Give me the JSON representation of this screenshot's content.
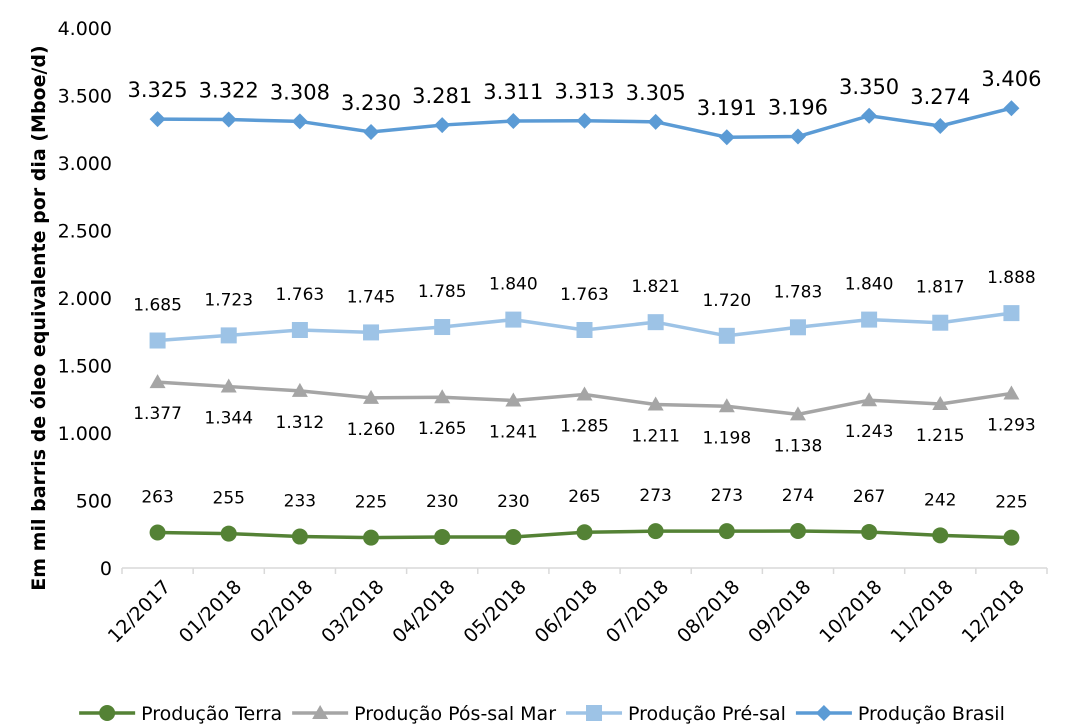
{
  "chart_data": {
    "type": "line",
    "title": "",
    "xlabel": "",
    "ylabel": "Em mil barris de óleo equivalente por dia (Mboe/d)",
    "ylim": [
      0,
      4000
    ],
    "yticks": [
      {
        "value": 0,
        "label": "0"
      },
      {
        "value": 500,
        "label": "500"
      },
      {
        "value": 1000,
        "label": "1.000"
      },
      {
        "value": 1500,
        "label": "1.500"
      },
      {
        "value": 2000,
        "label": "2.000"
      },
      {
        "value": 2500,
        "label": "2.500"
      },
      {
        "value": 3000,
        "label": "3.000"
      },
      {
        "value": 3500,
        "label": "3.500"
      },
      {
        "value": 4000,
        "label": "4.000"
      }
    ],
    "grid": false,
    "legend": "bottom",
    "categories": [
      "12/2017",
      "01/2018",
      "02/2018",
      "03/2018",
      "04/2018",
      "05/2018",
      "06/2018",
      "07/2018",
      "08/2018",
      "09/2018",
      "10/2018",
      "11/2018",
      "12/2018"
    ],
    "series": [
      {
        "name": "Produção Terra",
        "color": "#548235",
        "marker": "circle",
        "label_position": "above",
        "values": [
          263,
          255,
          233,
          225,
          230,
          230,
          265,
          273,
          273,
          274,
          267,
          242,
          225
        ],
        "labels": [
          "263",
          "255",
          "233",
          "225",
          "230",
          "230",
          "265",
          "273",
          "273",
          "274",
          "267",
          "242",
          "225"
        ]
      },
      {
        "name": "Produção Pós-sal Mar",
        "color": "#A5A5A5",
        "marker": "triangle",
        "label_position": "below",
        "values": [
          1377,
          1344,
          1312,
          1260,
          1265,
          1241,
          1285,
          1211,
          1198,
          1138,
          1243,
          1215,
          1293
        ],
        "labels": [
          "1.377",
          "1.344",
          "1.312",
          "1.260",
          "1.265",
          "1.241",
          "1.285",
          "1.211",
          "1.198",
          "1.138",
          "1.243",
          "1.215",
          "1.293"
        ]
      },
      {
        "name": "Produção Pré-sal",
        "color": "#9DC3E6",
        "marker": "square",
        "label_position": "above",
        "values": [
          1685,
          1723,
          1763,
          1745,
          1785,
          1840,
          1763,
          1821,
          1720,
          1783,
          1840,
          1817,
          1888
        ],
        "labels": [
          "1.685",
          "1.723",
          "1.763",
          "1.745",
          "1.785",
          "1.840",
          "1.763",
          "1.821",
          "1.720",
          "1.783",
          "1.840",
          "1.817",
          "1.888"
        ]
      },
      {
        "name": "Produção Brasil",
        "color": "#5B9BD5",
        "marker": "diamond",
        "label_position": "above",
        "values": [
          3325,
          3322,
          3308,
          3230,
          3281,
          3311,
          3313,
          3305,
          3191,
          3196,
          3350,
          3274,
          3406
        ],
        "labels": [
          "3.325",
          "3.322",
          "3.308",
          "3.230",
          "3.281",
          "3.311",
          "3.313",
          "3.305",
          "3.191",
          "3.196",
          "3.350",
          "3.274",
          "3.406"
        ]
      }
    ]
  }
}
